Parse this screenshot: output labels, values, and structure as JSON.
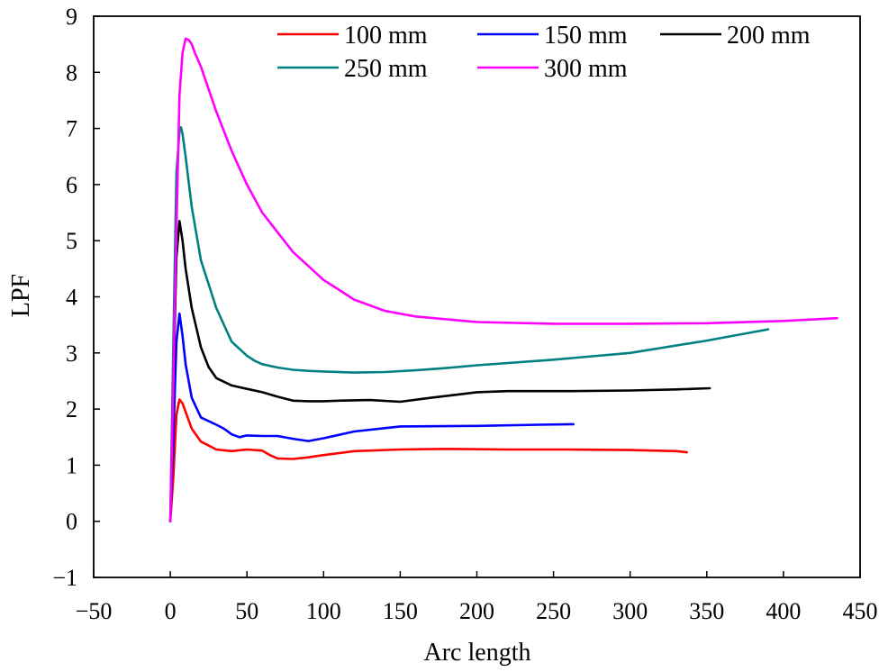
{
  "chart_data": {
    "type": "line",
    "title": "",
    "xlabel": "Arc length",
    "ylabel": "LPF",
    "xlim": [
      -50,
      450
    ],
    "ylim": [
      -1,
      9
    ],
    "xticks": [
      -50,
      0,
      50,
      100,
      150,
      200,
      250,
      300,
      350,
      400,
      450
    ],
    "xtick_labels": [
      "−50",
      "0",
      "50",
      "100",
      "150",
      "200",
      "250",
      "300",
      "350",
      "400",
      "450"
    ],
    "yticks": [
      -1,
      0,
      1,
      2,
      3,
      4,
      5,
      6,
      7,
      8,
      9
    ],
    "ytick_labels": [
      "−1",
      "0",
      "1",
      "2",
      "3",
      "4",
      "5",
      "6",
      "7",
      "8",
      "9"
    ],
    "legend_position": "top-right",
    "series": [
      {
        "name": "100 mm",
        "color": "#ff0000",
        "x": [
          0,
          2,
          4,
          6,
          8,
          10,
          14,
          20,
          30,
          40,
          50,
          60,
          65,
          70,
          80,
          90,
          100,
          120,
          150,
          180,
          220,
          260,
          300,
          330,
          337
        ],
        "y": [
          0,
          0.8,
          1.9,
          2.17,
          2.1,
          1.95,
          1.65,
          1.42,
          1.28,
          1.25,
          1.28,
          1.26,
          1.18,
          1.12,
          1.11,
          1.14,
          1.18,
          1.25,
          1.28,
          1.29,
          1.28,
          1.28,
          1.27,
          1.25,
          1.23
        ]
      },
      {
        "name": "150 mm",
        "color": "#0000ff",
        "x": [
          0,
          2,
          4,
          6,
          8,
          10,
          14,
          20,
          30,
          35,
          40,
          45,
          50,
          60,
          70,
          80,
          90,
          100,
          120,
          150,
          200,
          240,
          263
        ],
        "y": [
          0,
          1.5,
          3.2,
          3.7,
          3.3,
          2.8,
          2.2,
          1.85,
          1.72,
          1.65,
          1.55,
          1.5,
          1.53,
          1.52,
          1.52,
          1.47,
          1.43,
          1.48,
          1.6,
          1.69,
          1.7,
          1.72,
          1.73
        ]
      },
      {
        "name": "200 mm",
        "color": "#000000",
        "x": [
          0,
          2,
          4,
          6,
          8,
          10,
          14,
          20,
          25,
          30,
          40,
          50,
          60,
          70,
          80,
          90,
          100,
          110,
          130,
          150,
          170,
          200,
          220,
          260,
          300,
          330,
          352
        ],
        "y": [
          0,
          2.4,
          4.7,
          5.35,
          5.0,
          4.5,
          3.8,
          3.1,
          2.75,
          2.55,
          2.42,
          2.36,
          2.3,
          2.22,
          2.15,
          2.14,
          2.14,
          2.15,
          2.16,
          2.13,
          2.2,
          2.3,
          2.32,
          2.32,
          2.33,
          2.35,
          2.37
        ]
      },
      {
        "name": "250 mm",
        "color": "#008080",
        "x": [
          0,
          2,
          4,
          6,
          7,
          8,
          10,
          14,
          20,
          30,
          40,
          50,
          55,
          60,
          70,
          80,
          90,
          100,
          120,
          140,
          160,
          180,
          200,
          250,
          300,
          350,
          390
        ],
        "y": [
          0,
          3.2,
          6.2,
          6.95,
          7.02,
          6.9,
          6.5,
          5.6,
          4.65,
          3.8,
          3.2,
          2.95,
          2.86,
          2.8,
          2.74,
          2.7,
          2.68,
          2.67,
          2.65,
          2.66,
          2.69,
          2.73,
          2.78,
          2.88,
          3.0,
          3.22,
          3.42
        ]
      },
      {
        "name": "300 mm",
        "color": "#ff00ff",
        "x": [
          0,
          2,
          4,
          6,
          8,
          10,
          12,
          14,
          16,
          20,
          30,
          40,
          50,
          60,
          80,
          100,
          120,
          140,
          160,
          200,
          250,
          300,
          350,
          400,
          435
        ],
        "y": [
          0,
          2.5,
          5.2,
          7.6,
          8.35,
          8.6,
          8.58,
          8.5,
          8.35,
          8.1,
          7.3,
          6.6,
          6.0,
          5.5,
          4.8,
          4.3,
          3.95,
          3.75,
          3.65,
          3.55,
          3.52,
          3.52,
          3.53,
          3.57,
          3.62
        ]
      }
    ]
  }
}
